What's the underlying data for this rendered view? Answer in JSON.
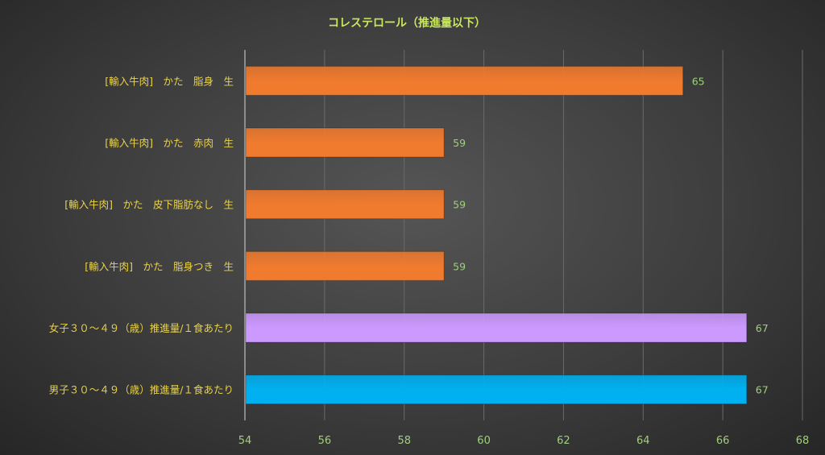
{
  "chart_data": {
    "type": "bar",
    "orientation": "horizontal",
    "title": "コレステロール（推進量以下）",
    "categories": [
      "[輸入牛肉]　かた　脂身　生",
      "[輸入牛肉]　かた　赤肉　生",
      "[輸入牛肉]　かた　皮下脂肪なし　生",
      "[輸入牛肉]　かた　脂身つき　生",
      "女子３０〜４９（歳）推進量/１食あたり",
      "男子３０〜４９（歳）推進量/１食あたり"
    ],
    "values": [
      65,
      59,
      59,
      59,
      66.6,
      66.6
    ],
    "value_labels": [
      "65",
      "59",
      "59",
      "59",
      "67",
      "67"
    ],
    "bar_colors": [
      "#f07a2e",
      "#f07a2e",
      "#f07a2e",
      "#f07a2e",
      "#cc99ff",
      "#00b0f0"
    ],
    "xlim": [
      54,
      68
    ],
    "xticks": [
      "54",
      "56",
      "58",
      "60",
      "62",
      "64",
      "66",
      "68"
    ],
    "grid": true,
    "legend": "none"
  }
}
